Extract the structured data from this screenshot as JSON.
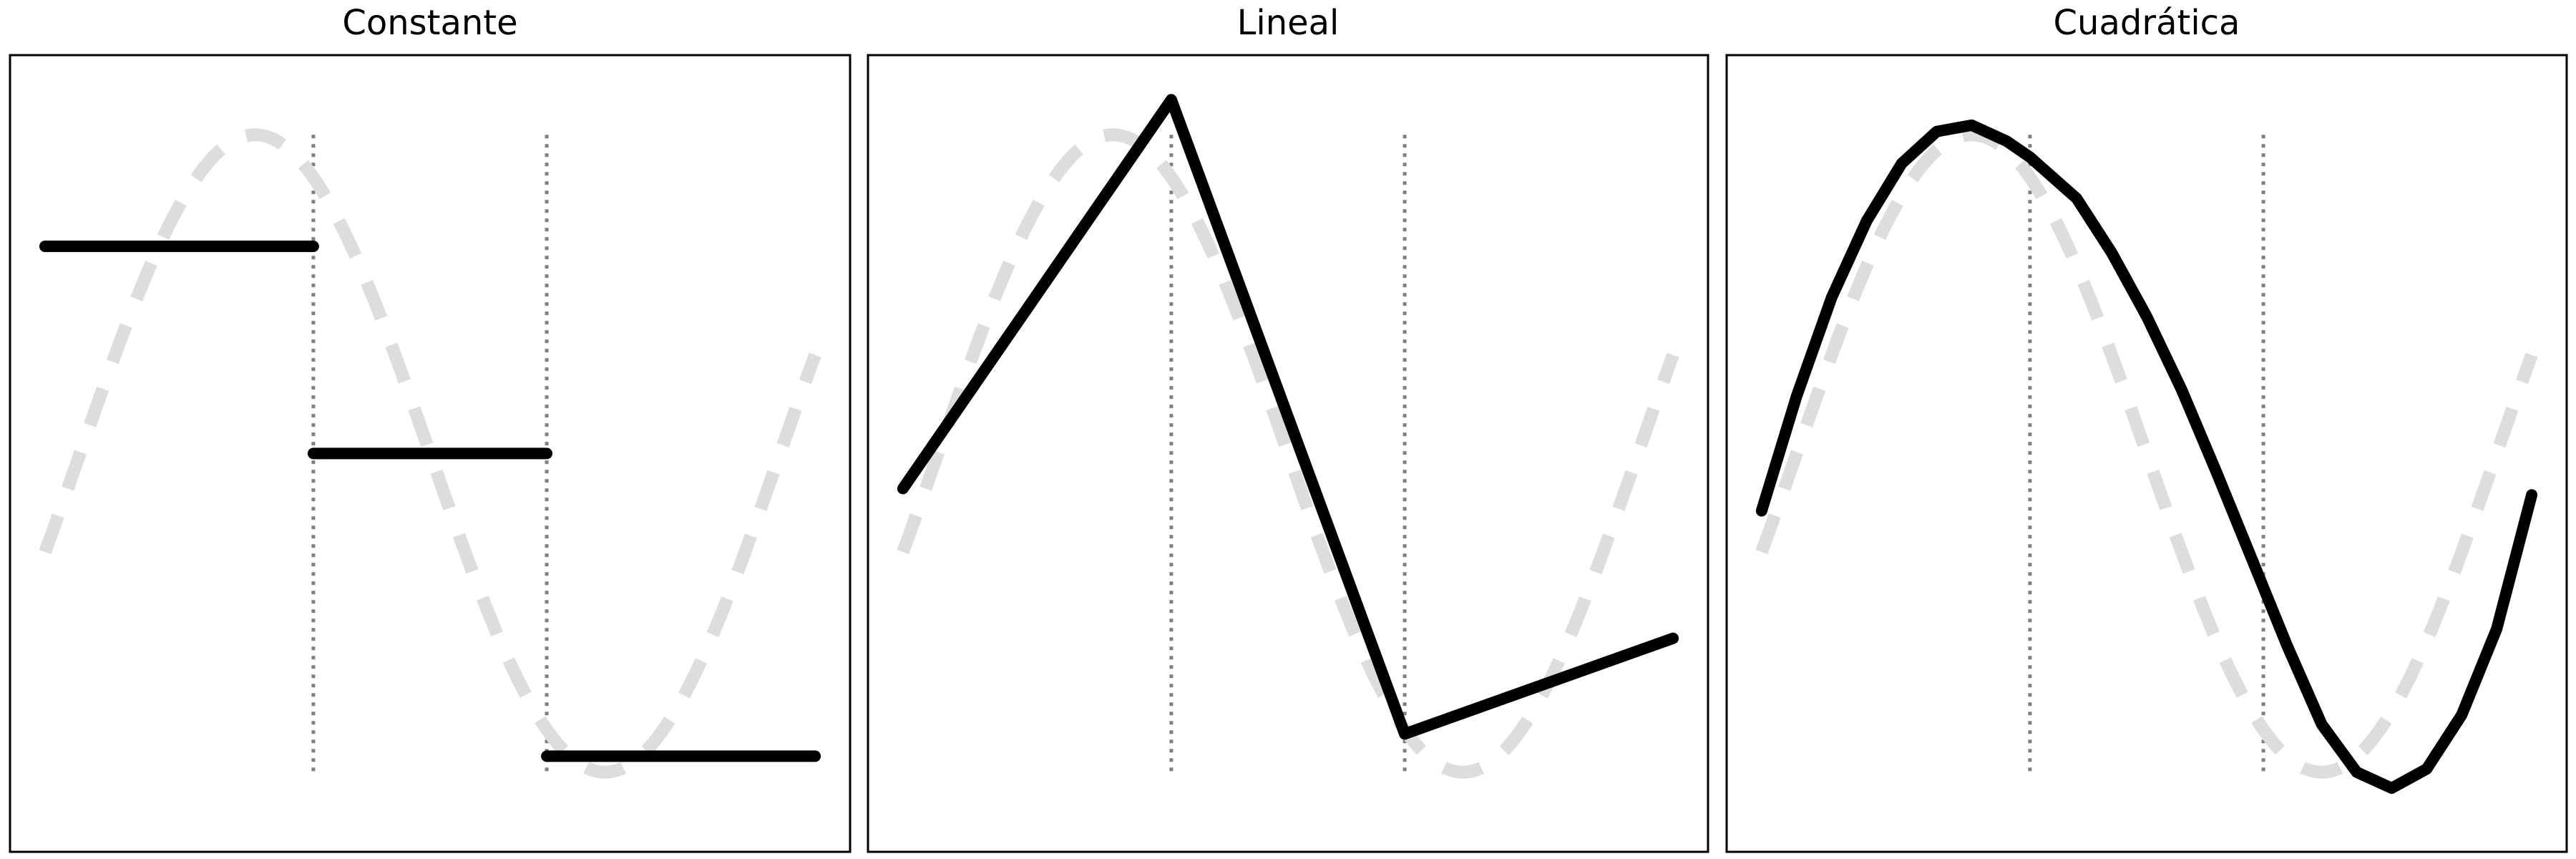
{
  "chart_data": [
    {
      "type": "line",
      "title": "Constante",
      "xlim": [
        -0.1,
        1.1
      ],
      "ylim": [
        -1.25,
        1.25
      ],
      "knots": [
        0.3333,
        0.6667
      ],
      "series": [
        {
          "role": "reference",
          "style": "dashed",
          "color": "#dddddd",
          "function": "sin(2πx)",
          "x_range": [
            -0.05,
            1.05
          ]
        },
        {
          "role": "approximation",
          "style": "solid",
          "color": "#000000",
          "segments": [
            {
              "x": [
                -0.05,
                0.3333
              ],
              "y": [
                0.65,
                0.65
              ]
            },
            {
              "x": [
                0.3333,
                0.6667
              ],
              "y": [
                0.0,
                0.0
              ]
            },
            {
              "x": [
                0.6667,
                1.05
              ],
              "y": [
                -0.95,
                -0.95
              ]
            }
          ]
        }
      ]
    },
    {
      "type": "line",
      "title": "Lineal",
      "xlim": [
        -0.1,
        1.1
      ],
      "ylim": [
        -1.25,
        1.25
      ],
      "knots": [
        0.3333,
        0.6667
      ],
      "series": [
        {
          "role": "reference",
          "style": "dashed",
          "color": "#dddddd",
          "function": "sin(2πx)",
          "x_range": [
            -0.05,
            1.05
          ]
        },
        {
          "role": "approximation",
          "style": "solid",
          "color": "#000000",
          "segments": [
            {
              "x": [
                -0.05,
                0.3333,
                0.6667,
                1.05
              ],
              "y": [
                -0.11,
                1.11,
                -0.88,
                -0.58
              ]
            }
          ]
        }
      ]
    },
    {
      "type": "line",
      "title": "Cuadrática",
      "xlim": [
        -0.1,
        1.1
      ],
      "ylim": [
        -1.25,
        1.25
      ],
      "knots": [
        0.3333,
        0.6667
      ],
      "series": [
        {
          "role": "reference",
          "style": "dashed",
          "color": "#dddddd",
          "function": "sin(2πx)",
          "x_range": [
            -0.05,
            1.05
          ]
        },
        {
          "role": "approximation",
          "style": "solid",
          "color": "#000000",
          "segments": [
            {
              "x": [
                -0.05,
                0.0,
                0.05,
                0.1,
                0.15,
                0.2,
                0.25,
                0.3,
                0.3333,
                0.4,
                0.45,
                0.5,
                0.55,
                0.6,
                0.65,
                0.7,
                0.75,
                0.8,
                0.85,
                0.9,
                0.95,
                1.0,
                1.05
              ],
              "y": [
                -0.18,
                0.18,
                0.49,
                0.73,
                0.91,
                1.01,
                1.03,
                0.98,
                0.93,
                0.8,
                0.63,
                0.43,
                0.2,
                -0.06,
                -0.33,
                -0.6,
                -0.85,
                -1.0,
                -1.05,
                -0.99,
                -0.82,
                -0.55,
                -0.13
              ]
            }
          ]
        }
      ]
    }
  ]
}
